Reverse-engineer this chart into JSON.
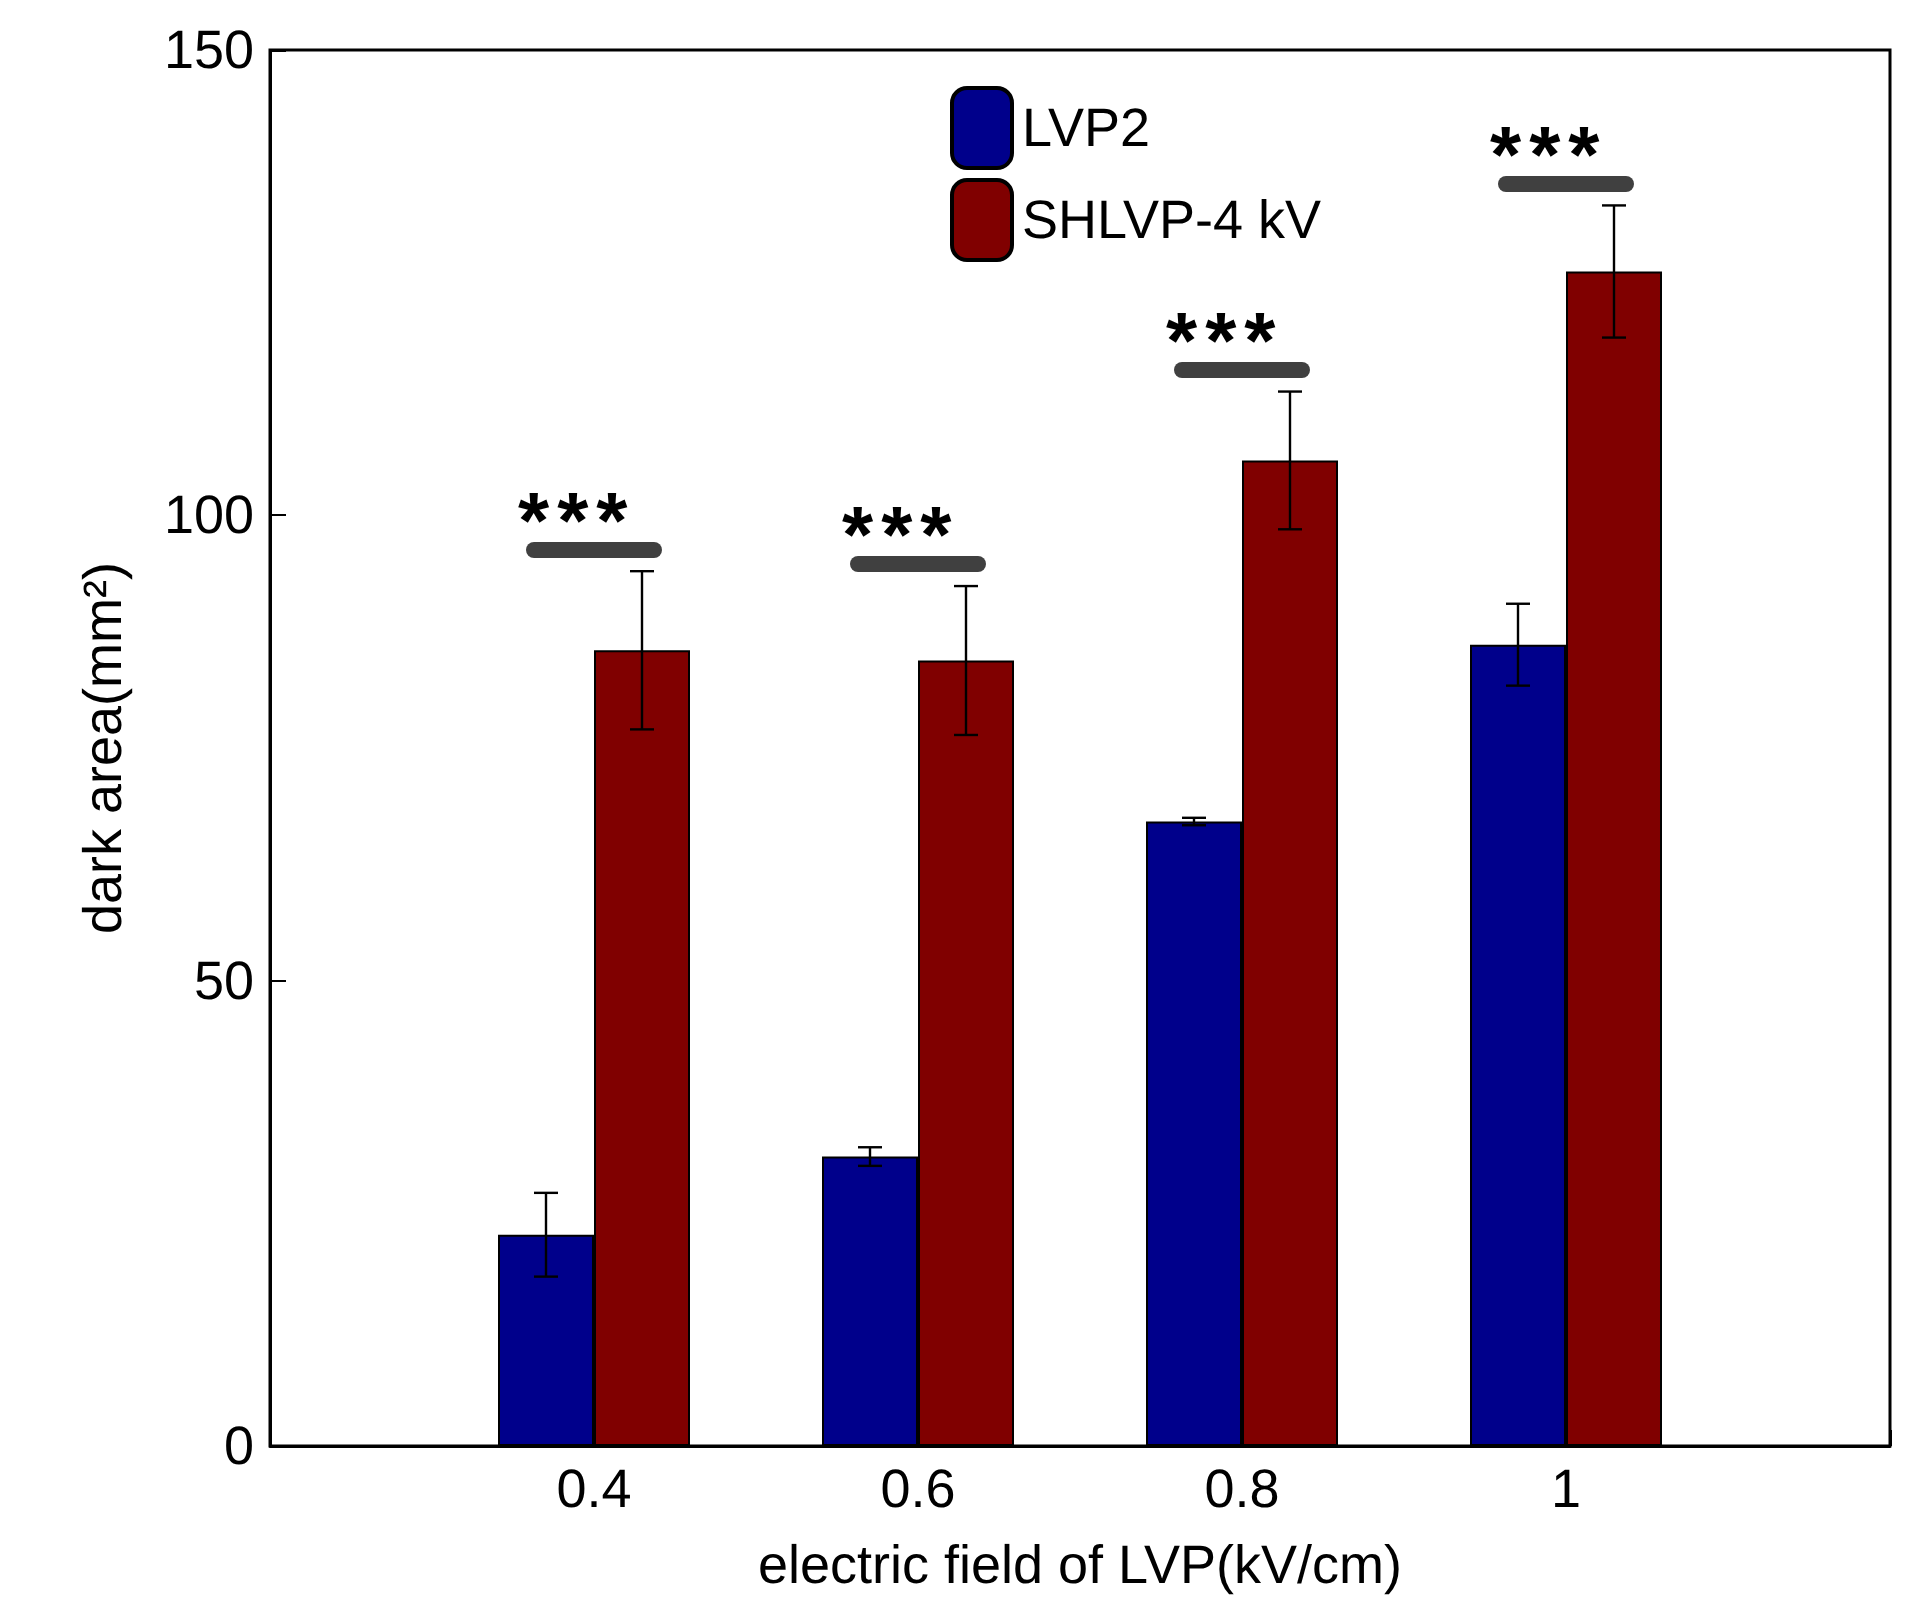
{
  "chart_data": {
    "type": "bar",
    "xlabel": "electric field of LVP(kV/cm)",
    "ylabel": "dark area(mm²)",
    "categories": [
      null,
      "0.4",
      "0.6",
      "0.8",
      "1",
      null
    ],
    "series": [
      {
        "name": "LVP2",
        "color": "#00008b",
        "values": [
          null,
          22.7,
          31.1,
          67.1,
          86.1,
          null
        ],
        "errors": [
          null,
          4.5,
          1,
          0.4,
          4.4,
          null
        ]
      },
      {
        "name": "SHLVP-4 kV",
        "color": "#800000",
        "values": [
          null,
          85.5,
          84.4,
          105.9,
          126.2,
          null
        ],
        "errors": [
          null,
          8.5,
          8,
          7.4,
          7.1,
          null
        ]
      }
    ],
    "ylim": [
      0,
      150
    ],
    "yticks": [
      0,
      50,
      100,
      150
    ],
    "grid": false,
    "legend": "top",
    "annotations": [
      "***",
      "***",
      "***",
      "***"
    ]
  }
}
